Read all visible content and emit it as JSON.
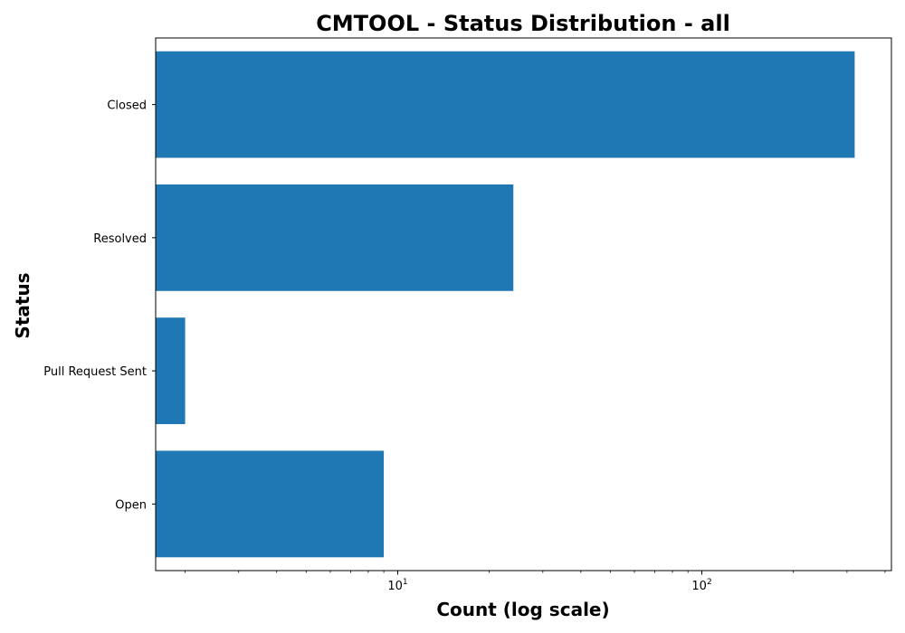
{
  "chart_data": {
    "type": "bar",
    "orientation": "horizontal",
    "title": "CMTOOL - Status Distribution - all",
    "xlabel": "Count (log scale)",
    "ylabel": "Status",
    "x_scale": "log",
    "xlim": [
      1.6,
      420
    ],
    "categories": [
      "Closed",
      "Resolved",
      "Pull Request Sent",
      "Open"
    ],
    "values": [
      318,
      24,
      2,
      9
    ],
    "x_ticks": [
      {
        "value": 10,
        "base": "10",
        "exp": "1"
      },
      {
        "value": 100,
        "base": "10",
        "exp": "2"
      }
    ],
    "bar_color": "#1f77b4",
    "grid": false,
    "legend": "none"
  }
}
